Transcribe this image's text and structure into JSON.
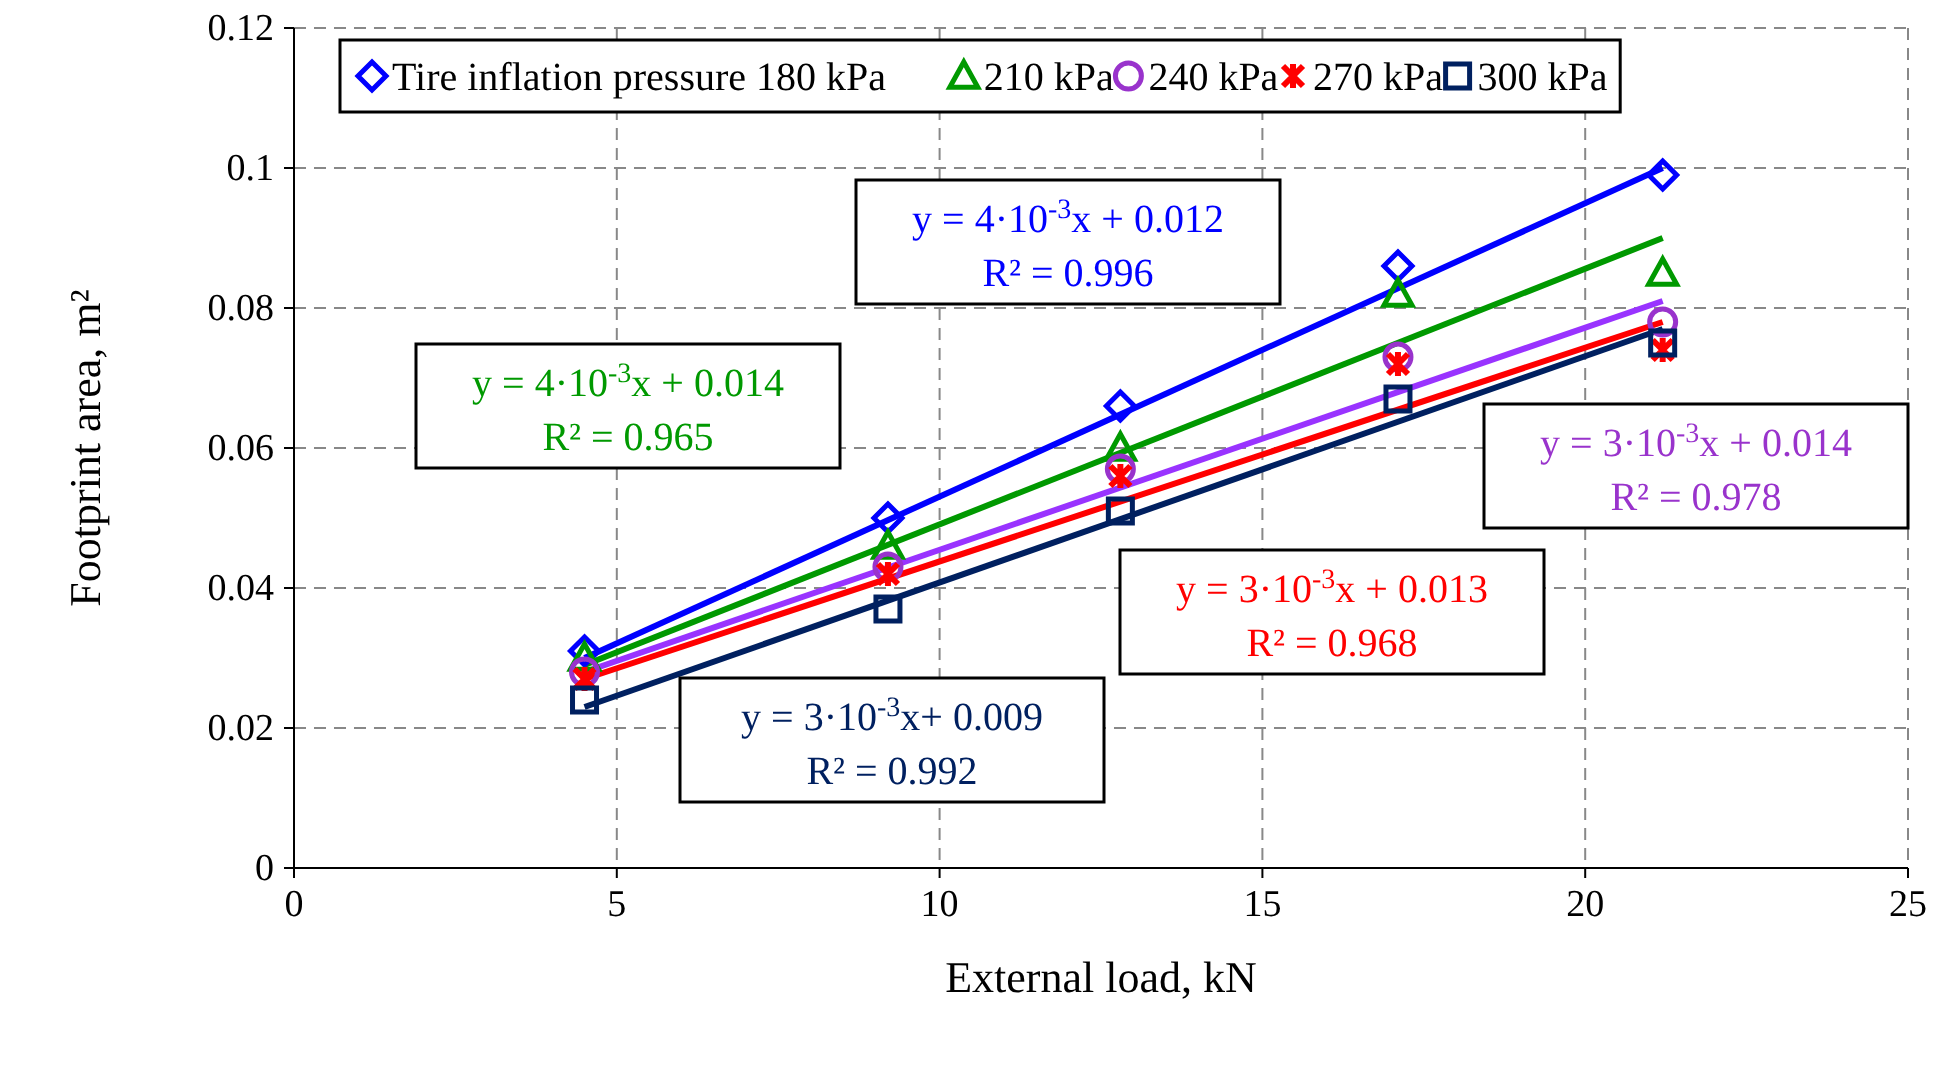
{
  "chart_data": {
    "type": "scatter",
    "xlabel": "External load, kN",
    "ylabel": "Footprint area, m²",
    "xlim": [
      0,
      25
    ],
    "xticks": [
      0,
      5,
      10,
      15,
      20,
      25
    ],
    "ylim": [
      0,
      0.12
    ],
    "yticks": [
      0,
      0.02,
      0.04,
      0.06,
      0.08,
      0.1,
      0.12
    ],
    "grid": true,
    "legend": "top",
    "line_style": "solid",
    "series": [
      {
        "name": "Tire inflation pressure 180 kPa",
        "marker": "diamond",
        "color": "#0000ff",
        "x": [
          4.5,
          9.2,
          12.8,
          17.1,
          21.2
        ],
        "values": [
          0.031,
          0.05,
          0.066,
          0.086,
          0.099
        ]
      },
      {
        "name": "210 kPa",
        "marker": "triangle",
        "color": "#009900",
        "x": [
          4.5,
          9.2,
          12.8,
          17.1,
          21.2
        ],
        "values": [
          0.03,
          0.046,
          0.06,
          0.082,
          0.085
        ]
      },
      {
        "name": "240 kPa",
        "marker": "circle",
        "color": "#9933cc",
        "x": [
          4.5,
          9.2,
          12.8,
          17.1,
          21.2
        ],
        "values": [
          0.028,
          0.043,
          0.057,
          0.073,
          0.078
        ]
      },
      {
        "name": "270 kPa",
        "marker": "cross",
        "color": "#ff0000",
        "x": [
          4.5,
          9.2,
          12.8,
          17.1,
          21.2
        ],
        "values": [
          0.027,
          0.042,
          0.056,
          0.072,
          0.074
        ]
      },
      {
        "name": "300 kPa",
        "marker": "square",
        "color": "#002060",
        "x": [
          4.5,
          9.2,
          12.8,
          17.1,
          21.2
        ],
        "values": [
          0.024,
          0.037,
          0.051,
          0.067,
          0.075
        ]
      },
      {
        "type": "line",
        "marker": "none",
        "color": "#0000ff",
        "x": [
          4.5,
          21.2
        ],
        "values": [
          0.03,
          0.1
        ]
      },
      {
        "type": "line",
        "marker": "none",
        "color": "#009900",
        "x": [
          4.5,
          21.2
        ],
        "values": [
          0.029,
          0.09
        ]
      },
      {
        "type": "line",
        "marker": "none",
        "color": "#9933ff",
        "x": [
          4.5,
          21.2
        ],
        "values": [
          0.028,
          0.081
        ]
      },
      {
        "type": "line",
        "marker": "none",
        "color": "#ff0000",
        "x": [
          4.5,
          21.2
        ],
        "values": [
          0.027,
          0.078
        ]
      },
      {
        "type": "line",
        "marker": "none",
        "color": "#002060",
        "x": [
          4.5,
          21.2
        ],
        "values": [
          0.023,
          0.077
        ]
      }
    ],
    "annotations": [
      "y = 4·10$^{-3}$x + 0.012\nR² = 0.996",
      "y = 4·10$^{-3}$x + 0.014\nR² = 0.965",
      "y = 3·10$^{-3}$x + 0.014\nR² = 0.978",
      "y = 3·10$^{-3}$x + 0.013\nR² = 0.968",
      "y = 3·10$^{-3}$x+ 0.009\nR² = 0.992"
    ]
  }
}
